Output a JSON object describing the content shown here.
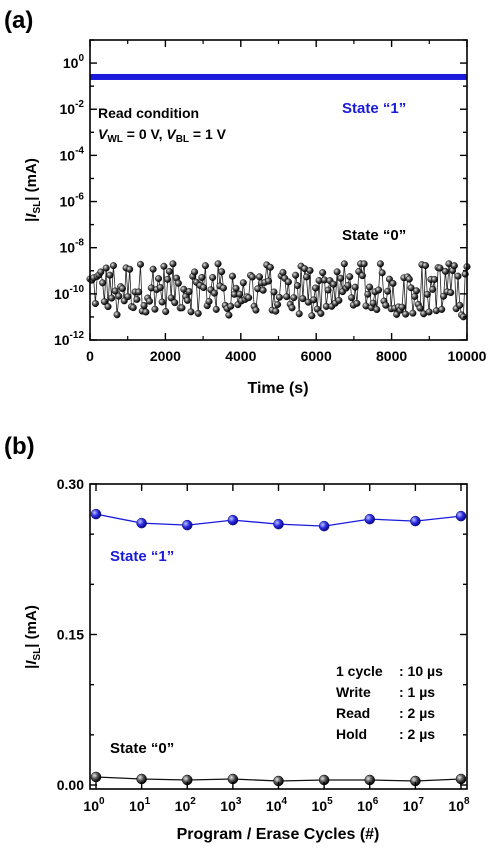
{
  "panels": {
    "a": {
      "label": "(a)",
      "title": "",
      "xlabel": "Time (s)",
      "ylabel_prefix": "|",
      "ylabel_var": "I",
      "ylabel_sub": "SL",
      "ylabel_suffix": "| (mA)",
      "read_condition": "Read condition",
      "cond_wl_var": "V",
      "cond_wl_sub": "WL",
      "cond_wl_text": " = 0 V, ",
      "cond_bl_var": "V",
      "cond_bl_sub": "BL",
      "cond_bl_text": " = 1 V",
      "state1_label": "State “1”",
      "state0_label": "State “0”",
      "x_ticks": [
        "0",
        "2000",
        "4000",
        "6000",
        "8000",
        "10000"
      ],
      "y_tick_exponents": [
        "0",
        "-2",
        "-4",
        "-6",
        "-8",
        "-10",
        "-12"
      ],
      "y_tick_base": "10"
    },
    "b": {
      "label": "(b)",
      "title": "",
      "xlabel": "Program / Erase Cycles (#)",
      "ylabel_prefix": "|",
      "ylabel_var": "I",
      "ylabel_sub": "SL",
      "ylabel_suffix": "| (mA)",
      "state1_label": "State “1”",
      "state0_label": "State “0”",
      "y_ticks": [
        "0.00",
        "0.15",
        "0.30"
      ],
      "x_tick_base": "10",
      "x_tick_exponents": [
        "0",
        "1",
        "2",
        "3",
        "4",
        "5",
        "6",
        "7",
        "8"
      ],
      "timing": [
        {
          "name": "1 cycle",
          "value": ": 10 µs"
        },
        {
          "name": "Write",
          "value": ": 1 µs"
        },
        {
          "name": "Read",
          "value": ": 2 µs"
        },
        {
          "name": "Hold",
          "value": ": 2 µs"
        }
      ]
    }
  },
  "colors": {
    "state1": "#1a1adb",
    "state0": "#111111",
    "axis": "#000000"
  },
  "chart_data": [
    {
      "type": "scatter",
      "title": "",
      "xlabel": "Time (s)",
      "ylabel": "|ISL| (mA)",
      "xlim": [
        0,
        10000
      ],
      "ylim": [
        1e-12,
        10
      ],
      "yscale": "log",
      "grid": false,
      "series": [
        {
          "name": "State “1”",
          "style": "dense line",
          "x": [
            0,
            10000
          ],
          "y": [
            0.25,
            0.25
          ]
        },
        {
          "name": "State “0”",
          "style": "scatter with drop lines",
          "x_range": [
            0,
            10000
          ],
          "y_range": [
            1e-11,
            2e-09
          ],
          "y_typical": 2e-10
        }
      ]
    },
    {
      "type": "line",
      "title": "",
      "xlabel": "Program / Erase Cycles (#)",
      "ylabel": "|ISL| (mA)",
      "xscale": "log",
      "x": [
        1,
        10,
        100,
        1000,
        10000,
        100000,
        1000000,
        10000000,
        100000000
      ],
      "ylim": [
        0,
        0.3
      ],
      "grid": false,
      "series": [
        {
          "name": "State “1”",
          "values": [
            0.27,
            0.261,
            0.259,
            0.264,
            0.26,
            0.258,
            0.265,
            0.263,
            0.268
          ]
        },
        {
          "name": "State “0”",
          "values": [
            0.008,
            0.006,
            0.005,
            0.006,
            0.004,
            0.005,
            0.005,
            0.004,
            0.006
          ]
        }
      ]
    }
  ]
}
